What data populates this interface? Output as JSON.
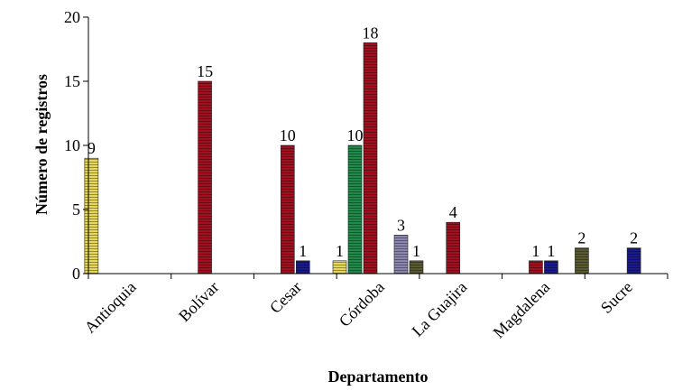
{
  "chart_data": {
    "type": "bar",
    "xlabel": "Departamento",
    "ylabel": "Número de registros",
    "ylim": [
      0,
      20
    ],
    "yticks": [
      0,
      5,
      10,
      15,
      20
    ],
    "grid": false,
    "legend": "none",
    "categories": [
      "Antioquia",
      "Bolívar",
      "Cesar",
      "Córdoba",
      "La Guajira",
      "Magdalena",
      "Sucre"
    ],
    "series": [
      {
        "color": "#e6d85a",
        "values": [
          9,
          0,
          0,
          1,
          0,
          0,
          0
        ]
      },
      {
        "color": "#a01020",
        "values": [
          0,
          15,
          10,
          18,
          4,
          1,
          0
        ]
      },
      {
        "color": "#1a1a8c",
        "values": [
          0,
          0,
          1,
          0,
          0,
          1,
          2
        ]
      },
      {
        "color": "#1f8a4a",
        "values": [
          0,
          0,
          0,
          10,
          0,
          0,
          0
        ]
      },
      {
        "color": "#8a86b0",
        "values": [
          0,
          0,
          0,
          3,
          0,
          0,
          0
        ]
      },
      {
        "color": "#5a5a32",
        "values": [
          0,
          0,
          0,
          1,
          0,
          2,
          0
        ]
      }
    ],
    "bars": [
      {
        "category": "Antioquia",
        "series_index": 0,
        "value": 9,
        "label": "9"
      },
      {
        "category": "Bolívar",
        "series_index": 1,
        "value": 15,
        "label": "15"
      },
      {
        "category": "Cesar",
        "series_index": 2,
        "value": 1,
        "label": "1"
      },
      {
        "category": "Cesar",
        "series_index": 1,
        "value": 10,
        "label": "10"
      },
      {
        "category": "Córdoba",
        "series_index": 0,
        "value": 1,
        "label": "1"
      },
      {
        "category": "Córdoba",
        "series_index": 3,
        "value": 10,
        "label": "10"
      },
      {
        "category": "Córdoba",
        "series_index": 4,
        "value": 3,
        "label": "3"
      },
      {
        "category": "Córdoba",
        "series_index": 1,
        "value": 18,
        "label": "18"
      },
      {
        "category": "Córdoba",
        "series_index": 5,
        "value": 1,
        "label": "1"
      },
      {
        "category": "La Guajira",
        "series_index": 1,
        "value": 4,
        "label": "4"
      },
      {
        "category": "Magdalena",
        "series_index": 2,
        "value": 1,
        "label": "1"
      },
      {
        "category": "Magdalena",
        "series_index": 1,
        "value": 1,
        "label": "1"
      },
      {
        "category": "Magdalena",
        "series_index": 5,
        "value": 2,
        "label": "2"
      },
      {
        "category": "Sucre",
        "series_index": 2,
        "value": 2,
        "label": "2"
      }
    ]
  }
}
